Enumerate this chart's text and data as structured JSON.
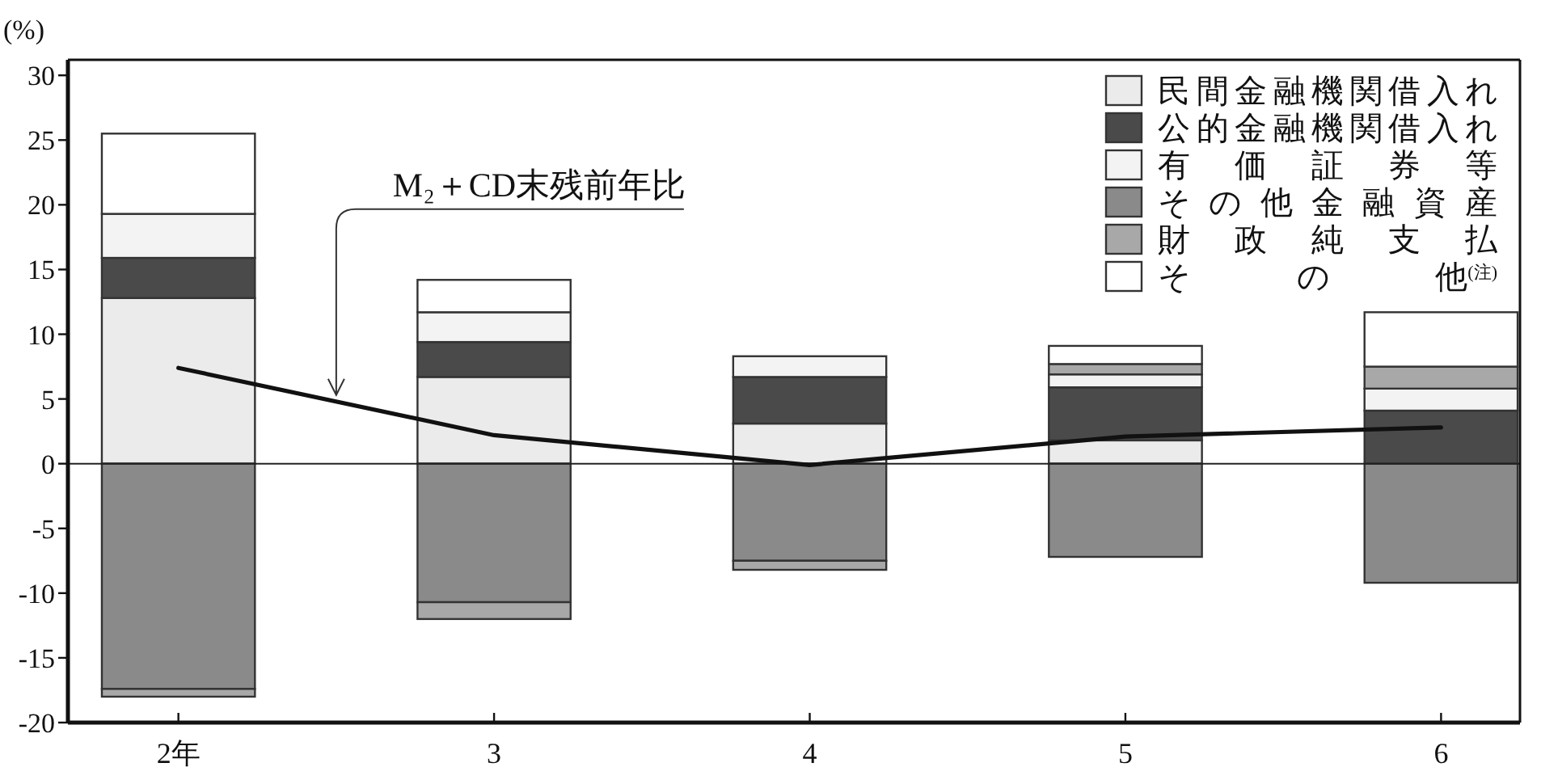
{
  "chart_data": {
    "type": "bar",
    "stacked": true,
    "ylabel": "(%)",
    "categories": [
      "2年",
      "3",
      "4",
      "5",
      "6"
    ],
    "series": [
      {
        "name": "民間金融機関借入れ",
        "color": "#ebebeb",
        "values": [
          12.8,
          6.7,
          3.1,
          1.8,
          0
        ]
      },
      {
        "name": "公的金融機関借入れ",
        "color": "#4a4a4a",
        "values": [
          3.1,
          2.7,
          3.6,
          4.1,
          4.1
        ]
      },
      {
        "name": "有価証券等",
        "color": "#f3f3f3",
        "values": [
          3.4,
          2.3,
          1.6,
          1.0,
          1.7
        ]
      },
      {
        "name": "その他金融資産",
        "color": "#8a8a8a",
        "values": [
          -17.4,
          -10.7,
          -7.5,
          -7.2,
          -9.2
        ]
      },
      {
        "name": "財政純支払",
        "color": "#a8a8a8",
        "values": [
          -0.6,
          -1.3,
          -0.7,
          0.8,
          1.7
        ]
      },
      {
        "name": "その他$^{(注)}$",
        "color": "#ffffff",
        "values": [
          6.2,
          2.5,
          null,
          1.4,
          4.2
        ]
      },
      {
        "name": "M₂＋CD末残前年比",
        "type": "line",
        "color": "#111111",
        "values": [
          7.4,
          2.2,
          -0.1,
          2.1,
          2.8
        ]
      }
    ],
    "ylim": [
      -20,
      31.2
    ],
    "yticks": [
      -20,
      -15,
      -10,
      -5,
      0,
      5,
      10,
      15,
      20,
      25,
      30
    ],
    "ref_lines": [
      {
        "axis": "y",
        "value": 0
      }
    ],
    "legend": "top right"
  }
}
